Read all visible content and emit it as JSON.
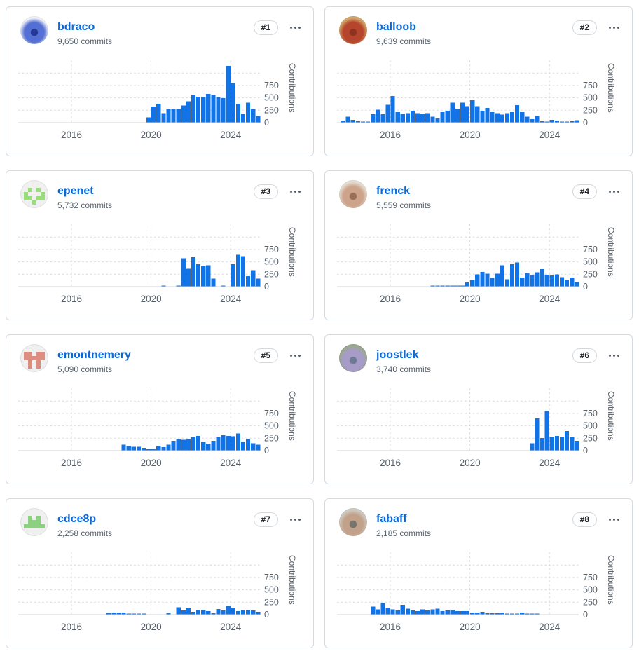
{
  "ui": {
    "icons": {
      "menu": "kebab-horizontal-icon"
    }
  },
  "colors": {
    "bar": "#1273e6",
    "link": "#0969da",
    "muted": "#59636e",
    "card_border": "#d4dae0",
    "grid_line": "#d6dade",
    "axis_line": "#cfd4da",
    "tick_label": "#57606a"
  },
  "chart_axes": {
    "y_label": "Contributions",
    "y_ticks": [
      "750",
      "500",
      "250",
      "0"
    ],
    "y_units_per_grid": 250,
    "x_ticks": [
      "2016",
      "2020",
      "2024"
    ],
    "x_tick_years": [
      2016,
      2020,
      2024
    ],
    "x_domain": [
      2013.3,
      2025.5
    ],
    "grid": "dashed"
  },
  "contributors": [
    {
      "username": "bdraco",
      "commits": "9,650 commits",
      "rank": "#1",
      "avatar": {
        "type": "photo",
        "style": "blue-dragon-art",
        "colors": [
          "#f3f4f8",
          "#5570d4",
          "#253a96"
        ]
      },
      "chart_data": {
        "type": "bar",
        "ylabel": "Contributions",
        "start": "2019-Q4",
        "values": [
          105,
          325,
          380,
          190,
          285,
          270,
          285,
          345,
          430,
          560,
          525,
          515,
          580,
          560,
          515,
          495,
          1145,
          800,
          380,
          180,
          400,
          265,
          125
        ]
      }
    },
    {
      "username": "balloob",
      "commits": "9,639 commits",
      "rank": "#2",
      "avatar": {
        "type": "photo",
        "style": "portrait-red-gold",
        "colors": [
          "#d3ab6e",
          "#b5452c",
          "#8e3320"
        ]
      },
      "chart_data": {
        "type": "bar",
        "ylabel": "Contributions",
        "start": "2013-Q3",
        "values": [
          45,
          120,
          60,
          25,
          20,
          10,
          170,
          260,
          170,
          360,
          540,
          215,
          180,
          190,
          240,
          190,
          180,
          190,
          120,
          85,
          215,
          240,
          405,
          285,
          405,
          330,
          450,
          330,
          240,
          295,
          215,
          190,
          165,
          190,
          215,
          355,
          215,
          120,
          70,
          135,
          30,
          20,
          60,
          40,
          20,
          10,
          30,
          50
        ]
      }
    },
    {
      "username": "epenet",
      "commits": "5,732 commits",
      "rank": "#3",
      "avatar": {
        "type": "identicon",
        "fg": "#9ade7b",
        "bg": "#f0f0f0",
        "pattern": [
          "00000",
          "01010",
          "10001",
          "11011",
          "00100"
        ]
      },
      "chart_data": {
        "type": "bar",
        "ylabel": "Contributions",
        "start": "2020-Q3",
        "values": [
          15,
          0,
          0,
          20,
          570,
          360,
          590,
          450,
          420,
          430,
          165,
          0,
          15,
          0,
          450,
          640,
          615,
          215,
          330,
          165
        ]
      }
    },
    {
      "username": "frenck",
      "commits": "5,559 commits",
      "rank": "#4",
      "avatar": {
        "type": "photo",
        "style": "portrait-light",
        "colors": [
          "#e6e0d6",
          "#cda48b",
          "#9c6f58"
        ]
      },
      "chart_data": {
        "type": "bar",
        "ylabel": "Contributions",
        "start": "2018-Q1",
        "values": [
          10,
          8,
          10,
          15,
          15,
          10,
          15,
          85,
          140,
          250,
          295,
          260,
          180,
          260,
          430,
          150,
          455,
          490,
          185,
          265,
          230,
          290,
          350,
          240,
          225,
          245,
          190,
          135,
          185,
          95
        ]
      }
    },
    {
      "username": "emontnemery",
      "commits": "5,090 commits",
      "rank": "#5",
      "avatar": {
        "type": "identicon",
        "fg": "#dd8e80",
        "bg": "#f0f0f0",
        "pattern": [
          "00000",
          "11011",
          "11111",
          "01010",
          "01010"
        ]
      },
      "chart_data": {
        "type": "bar",
        "ylabel": "Contributions",
        "start": "2018-Q3",
        "values": [
          120,
          90,
          75,
          75,
          55,
          35,
          35,
          95,
          70,
          120,
          200,
          230,
          220,
          235,
          270,
          300,
          180,
          140,
          200,
          280,
          310,
          300,
          290,
          345,
          180,
          230,
          150,
          120
        ]
      }
    },
    {
      "username": "joostlek",
      "commits": "3,740 commits",
      "rank": "#6",
      "avatar": {
        "type": "photo",
        "style": "portrait-purple",
        "colors": [
          "#9aa98f",
          "#a79bc8",
          "#6e7b94"
        ]
      },
      "chart_data": {
        "type": "bar",
        "ylabel": "Contributions",
        "start": "2023-Q1",
        "values": [
          150,
          650,
          255,
          800,
          265,
          295,
          275,
          395,
          285,
          195
        ]
      }
    },
    {
      "username": "cdce8p",
      "commits": "2,258 commits",
      "rank": "#7",
      "avatar": {
        "type": "identicon",
        "fg": "#8ed081",
        "bg": "#f0f0f0",
        "pattern": [
          "00000",
          "01010",
          "01110",
          "11111",
          "00000"
        ]
      },
      "chart_data": {
        "type": "bar",
        "ylabel": "Contributions",
        "start": "2017-Q4",
        "values": [
          35,
          45,
          45,
          40,
          20,
          10,
          10,
          5,
          0,
          0,
          0,
          0,
          35,
          0,
          150,
          85,
          140,
          55,
          95,
          95,
          70,
          25,
          115,
          85,
          175,
          140,
          70,
          95,
          95,
          85,
          55
        ]
      }
    },
    {
      "username": "fabaff",
      "commits": "2,185 commits",
      "rank": "#8",
      "avatar": {
        "type": "photo",
        "style": "portrait-gray",
        "colors": [
          "#cfcdc6",
          "#c2a18b",
          "#77736d"
        ]
      },
      "chart_data": {
        "type": "bar",
        "ylabel": "Contributions",
        "start": "2015-Q1",
        "values": [
          165,
          105,
          230,
          140,
          105,
          85,
          200,
          120,
          85,
          70,
          105,
          85,
          105,
          120,
          70,
          85,
          95,
          70,
          70,
          70,
          45,
          40,
          55,
          25,
          25,
          25,
          40,
          15,
          15,
          10,
          40,
          15,
          10,
          5
        ]
      }
    }
  ]
}
